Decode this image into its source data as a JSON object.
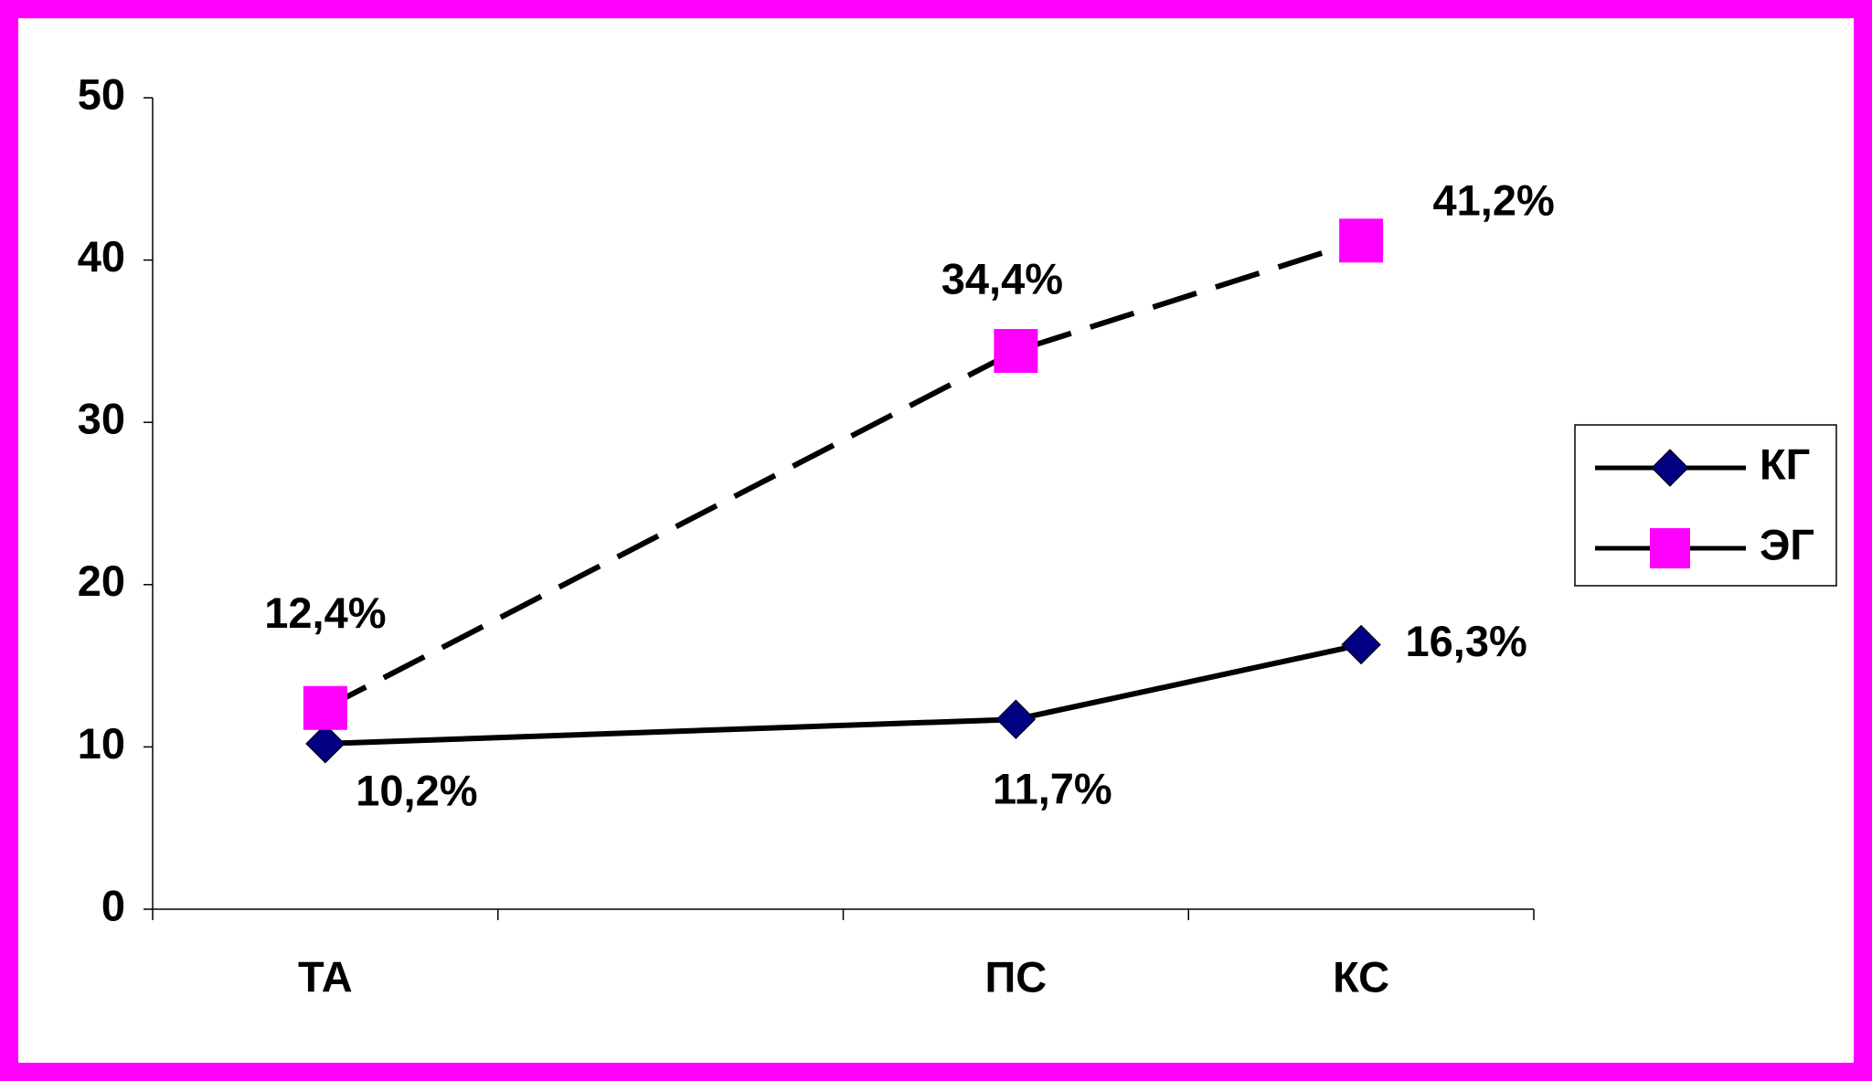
{
  "chart_data": {
    "type": "line",
    "categories": [
      "ТА",
      null,
      "ПС",
      "КС"
    ],
    "series": [
      {
        "name": "КГ",
        "color": "#000080",
        "line_color": "#000000",
        "line_style": "solid",
        "marker": "diamond",
        "values": [
          10.2,
          null,
          11.7,
          16.3
        ],
        "value_labels": [
          "10,2%",
          null,
          "11,7%",
          "16,3%"
        ]
      },
      {
        "name": "ЭГ",
        "color": "#ff00ff",
        "line_color": "#000000",
        "line_style": "dashed",
        "marker": "square",
        "values": [
          12.4,
          null,
          34.4,
          41.2
        ],
        "value_labels": [
          "12,4%",
          null,
          "34,4%",
          "41,2%"
        ]
      }
    ],
    "ylim": [
      0,
      50
    ],
    "yticks": [
      0,
      10,
      20,
      30,
      40,
      50
    ],
    "grid": false,
    "legend": "right"
  }
}
